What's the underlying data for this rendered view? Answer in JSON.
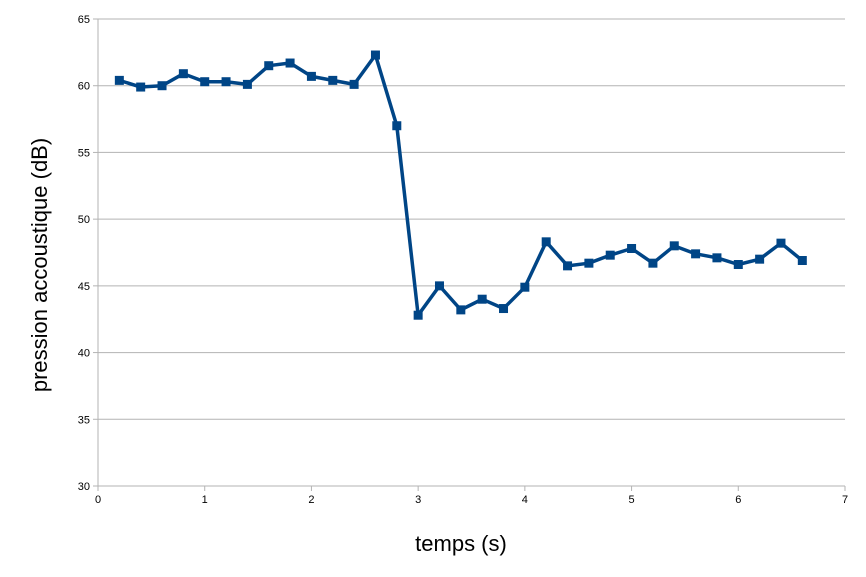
{
  "chart_data": {
    "type": "line",
    "title": "",
    "xlabel": "temps (s)",
    "ylabel": "pression accoustique (dB)",
    "xlim": [
      0,
      7
    ],
    "ylim": [
      30,
      65
    ],
    "x_ticks": [
      0,
      1,
      2,
      3,
      4,
      5,
      6,
      7
    ],
    "y_ticks": [
      30,
      35,
      40,
      45,
      50,
      55,
      60,
      65
    ],
    "grid": "horizontal",
    "legend": "none",
    "colors": {
      "series": "#004586",
      "grid": "#b3b3b3",
      "axis": "#b3b3b3"
    },
    "series": [
      {
        "x": [
          0.2,
          0.4,
          0.6,
          0.8,
          1.0,
          1.2,
          1.4,
          1.6,
          1.8,
          2.0,
          2.2,
          2.4,
          2.6,
          2.8,
          3.0,
          3.2,
          3.4,
          3.6,
          3.8,
          4.0,
          4.2,
          4.4,
          4.6,
          4.8,
          5.0,
          5.2,
          5.4,
          5.6,
          5.8,
          6.0,
          6.2,
          6.4,
          6.6
        ],
        "values": [
          60.4,
          59.9,
          60.0,
          60.9,
          60.3,
          60.3,
          60.1,
          61.5,
          61.7,
          60.7,
          60.4,
          60.1,
          62.3,
          57.0,
          42.8,
          45.0,
          43.2,
          44.0,
          43.3,
          44.9,
          48.3,
          46.5,
          46.7,
          47.3,
          47.8,
          46.7,
          48.0,
          47.4,
          47.1,
          46.6,
          47.0,
          48.2,
          46.9
        ]
      }
    ]
  }
}
